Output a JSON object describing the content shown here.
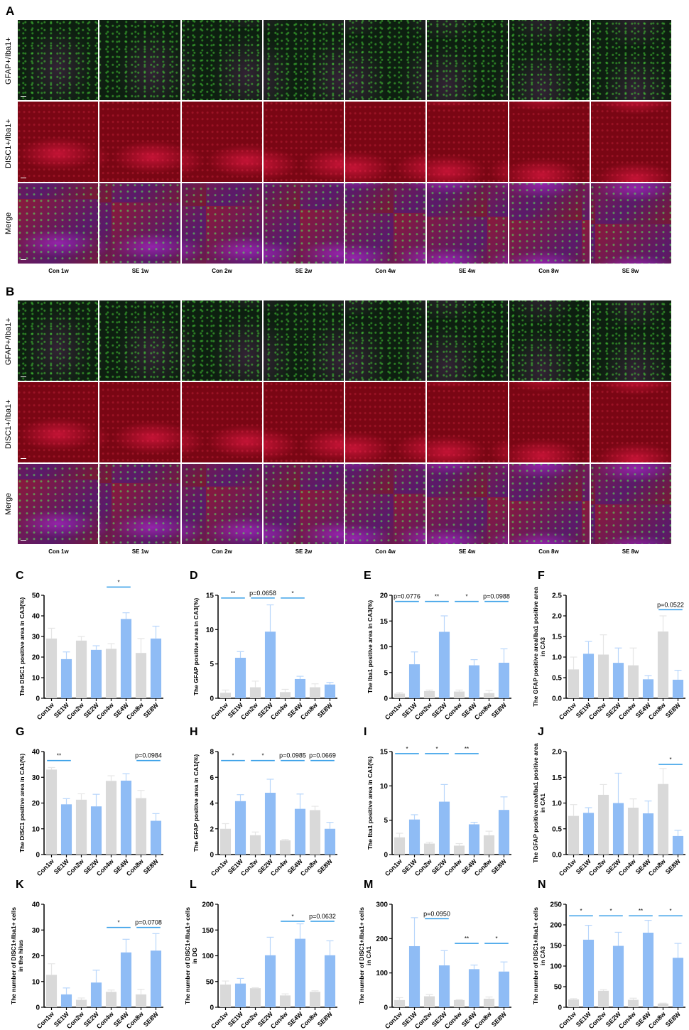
{
  "figure": {
    "sections": [
      {
        "letter": "A",
        "rows": [
          "GFAP+/Iba1+",
          "DISC1+/Iba1+",
          "Merge"
        ],
        "columns": [
          "Con 1w",
          "SE 1w",
          "Con 2w",
          "SE 2w",
          "Con 4w",
          "SE 4w",
          "Con 8w",
          "SE 8w"
        ]
      },
      {
        "letter": "B",
        "rows": [
          "GFAP+/Iba1+",
          "DISC1+/Iba1+",
          "Merge"
        ],
        "columns": [
          "Con 1w",
          "SE 1w",
          "Con 2w",
          "SE 2w",
          "Con 4w",
          "SE 4w",
          "Con 8w",
          "SE 8w"
        ]
      }
    ]
  },
  "colors": {
    "control": "#d9d9d9",
    "se": "#8fbcf5",
    "sig_line": "#3aa0e8",
    "control_err": "#e6e6e6",
    "se_err": "#b8d6fb"
  },
  "chart_data": [
    {
      "letter": "C",
      "type": "bar",
      "ylabel": "The DISC1 positive area in CA3(%)",
      "ylim": [
        0,
        50
      ],
      "yticks": [
        0,
        10,
        20,
        30,
        40,
        50
      ],
      "categories": [
        "Con1w",
        "SE1W",
        "Con2w",
        "SE2W",
        "Con4w",
        "SE4W",
        "Con8w",
        "SE8W"
      ],
      "values": [
        29,
        19,
        28,
        23.5,
        24,
        38.5,
        22,
        29
      ],
      "errors": [
        5,
        3.5,
        2,
        2,
        2.5,
        3,
        7,
        6
      ],
      "significance": [
        {
          "from": 4,
          "to": 5,
          "label": "*",
          "y": 54
        }
      ]
    },
    {
      "letter": "D",
      "type": "bar",
      "ylabel": "The GFAP positive area in CA3(%)",
      "ylim": [
        0,
        15
      ],
      "yticks": [
        0,
        5,
        10,
        15
      ],
      "categories": [
        "Con1w",
        "SE1W",
        "Con2w",
        "SE2W",
        "Con4w",
        "SE4W",
        "Con8w",
        "SE8W"
      ],
      "values": [
        0.8,
        5.9,
        1.6,
        9.7,
        0.9,
        2.8,
        1.6,
        2.0
      ],
      "errors": [
        0.4,
        0.9,
        0.9,
        3.9,
        0.4,
        0.4,
        0.5,
        0.3
      ],
      "significance": [
        {
          "from": 0,
          "to": 1,
          "label": "**",
          "y": 14.6
        },
        {
          "from": 2,
          "to": 3,
          "label": "p=0.0658",
          "y": 14.6
        },
        {
          "from": 4,
          "to": 5,
          "label": "*",
          "y": 14.6
        }
      ]
    },
    {
      "letter": "E",
      "type": "bar",
      "ylabel": "The Iba1 positive area in CA3(%)",
      "ylim": [
        0,
        20
      ],
      "yticks": [
        0,
        5,
        10,
        15,
        20
      ],
      "categories": [
        "Con1w",
        "SE1W",
        "Con2w",
        "SE2W",
        "Con4w",
        "SE4W",
        "Con8w",
        "SE8W"
      ],
      "values": [
        0.9,
        6.6,
        1.4,
        12.9,
        1.3,
        6.4,
        1.0,
        6.9
      ],
      "errors": [
        0.2,
        2.4,
        0.2,
        3.1,
        0.3,
        1.1,
        0.5,
        2.7
      ],
      "significance": [
        {
          "from": 0,
          "to": 1,
          "label": "p=0.0776",
          "y": 18.8
        },
        {
          "from": 2,
          "to": 3,
          "label": "**",
          "y": 18.8
        },
        {
          "from": 4,
          "to": 5,
          "label": "*",
          "y": 18.8
        },
        {
          "from": 6,
          "to": 7,
          "label": "p=0.0988",
          "y": 18.8
        }
      ]
    },
    {
      "letter": "F",
      "type": "bar",
      "ylabel": "The GFAP positive area/Iba1 positive area in CA3",
      "ylim": [
        0,
        2.5
      ],
      "yticks": [
        "0.0",
        "0.5",
        "1.0",
        "1.5",
        "2.0",
        "2.5"
      ],
      "categories": [
        "Con1w",
        "SE1W",
        "Con2w",
        "SE2W",
        "Con4w",
        "SE4W",
        "Con8w",
        "SE8W"
      ],
      "values": [
        0.7,
        1.08,
        1.06,
        0.86,
        0.8,
        0.46,
        1.62,
        0.45
      ],
      "errors": [
        0.3,
        0.3,
        0.48,
        0.36,
        0.42,
        0.09,
        0.38,
        0.23
      ],
      "significance": [
        {
          "from": 6,
          "to": 7,
          "label": "p=0.0522",
          "y": 2.15
        }
      ]
    },
    {
      "letter": "G",
      "type": "bar",
      "ylabel": "The DISC1 positive area in CA1(%)",
      "ylim": [
        0,
        40
      ],
      "yticks": [
        0,
        10,
        20,
        30,
        40
      ],
      "categories": [
        "Con1w",
        "SE1W",
        "Con2w",
        "SE2W",
        "Con4w",
        "SE4W",
        "Con8w",
        "SE8W"
      ],
      "values": [
        33,
        19.5,
        21.3,
        18.7,
        28.6,
        28.7,
        21.9,
        13.1
      ],
      "errors": [
        0.8,
        2.2,
        2.3,
        4.7,
        2,
        2.7,
        3,
        2.8
      ],
      "significance": [
        {
          "from": 0,
          "to": 1,
          "label": "**",
          "y": 36.5
        },
        {
          "from": 6,
          "to": 7,
          "label": "p=0.0984",
          "y": 36.5
        }
      ]
    },
    {
      "letter": "H",
      "type": "bar",
      "ylabel": "The GFAP positive area in CA1(%)",
      "ylim": [
        0,
        8
      ],
      "yticks": [
        0,
        2,
        4,
        6,
        8
      ],
      "categories": [
        "Con1w",
        "SE1W",
        "Con2w",
        "SE2W",
        "Con4w",
        "SE4W",
        "Con8w",
        "SE8W"
      ],
      "values": [
        2.0,
        4.15,
        1.5,
        4.8,
        1.1,
        3.55,
        3.45,
        2.0
      ],
      "errors": [
        0.4,
        0.5,
        0.25,
        1.05,
        0.08,
        1.15,
        0.3,
        0.5
      ],
      "significance": [
        {
          "from": 0,
          "to": 1,
          "label": "*",
          "y": 7.3
        },
        {
          "from": 2,
          "to": 3,
          "label": "*",
          "y": 7.3
        },
        {
          "from": 4,
          "to": 5,
          "label": "p=0.0985",
          "y": 7.3
        },
        {
          "from": 6,
          "to": 7,
          "label": "p=0.0669",
          "y": 7.3
        }
      ]
    },
    {
      "letter": "I",
      "type": "bar",
      "ylabel": "The Iba1 positive area in CA1(%)",
      "ylim": [
        0,
        15
      ],
      "yticks": [
        0,
        5,
        10,
        15
      ],
      "categories": [
        "Con1w",
        "SE1W",
        "Con2w",
        "SE2W",
        "Con4w",
        "SE4W",
        "Con8w",
        "SE8W"
      ],
      "values": [
        2.5,
        5.1,
        1.6,
        7.7,
        1.3,
        4.4,
        2.8,
        6.5
      ],
      "errors": [
        0.6,
        0.7,
        0.2,
        2.5,
        0.3,
        0.3,
        0.6,
        1.9
      ],
      "significance": [
        {
          "from": 0,
          "to": 1,
          "label": "*",
          "y": 14.7
        },
        {
          "from": 2,
          "to": 3,
          "label": "*",
          "y": 14.7
        },
        {
          "from": 4,
          "to": 5,
          "label": "**",
          "y": 14.7
        }
      ]
    },
    {
      "letter": "J",
      "type": "bar",
      "ylabel": "The GFAP positive area/Iba1 positive area in CA1",
      "ylim": [
        0,
        2
      ],
      "yticks": [
        "0.0",
        "0.5",
        "1.0",
        "1.5",
        "2.0"
      ],
      "categories": [
        "Con1w",
        "SE1W",
        "Con2w",
        "SE2W",
        "Con4w",
        "SE4W",
        "Con8w",
        "SE8W"
      ],
      "values": [
        0.75,
        0.81,
        1.16,
        1.0,
        0.91,
        0.8,
        1.37,
        0.36
      ],
      "errors": [
        0.22,
        0.1,
        0.2,
        0.58,
        0.17,
        0.24,
        0.3,
        0.11
      ],
      "significance": [
        {
          "from": 6,
          "to": 7,
          "label": "*",
          "y": 1.75
        }
      ]
    },
    {
      "letter": "K",
      "type": "bar",
      "ylabel": "The number of DISC1+/Iba1+ cells in the hilus",
      "ylim": [
        0,
        40
      ],
      "yticks": [
        0,
        10,
        20,
        30,
        40
      ],
      "categories": [
        "Con1w",
        "SE1W",
        "Con2w",
        "SE2W",
        "Con4w",
        "SE4W",
        "Con8w",
        "SE8W"
      ],
      "values": [
        12.6,
        5,
        2.9,
        9.6,
        6,
        21.3,
        5,
        22
      ],
      "errors": [
        4.3,
        2.5,
        0.7,
        4.8,
        0.7,
        5.1,
        2,
        6.6
      ],
      "significance": [
        {
          "from": 4,
          "to": 5,
          "label": "*",
          "y": 31
        },
        {
          "from": 6,
          "to": 7,
          "label": "p=0.0708",
          "y": 31
        }
      ]
    },
    {
      "letter": "L",
      "type": "bar",
      "ylabel": "The number of DISC1+/Iba1+ cells in DG",
      "ylim": [
        0,
        200
      ],
      "yticks": [
        0,
        50,
        100,
        150,
        200
      ],
      "categories": [
        "Con1w",
        "SE1W",
        "Con2w",
        "SE2W",
        "Con4w",
        "SE4W",
        "Con8w",
        "SE8W"
      ],
      "values": [
        44,
        46,
        37,
        101,
        23,
        133,
        30,
        101
      ],
      "errors": [
        7,
        10,
        1,
        35,
        3,
        29,
        2,
        28
      ],
      "significance": [
        {
          "from": 4,
          "to": 5,
          "label": "*",
          "y": 167
        },
        {
          "from": 6,
          "to": 7,
          "label": "p=0.0632",
          "y": 167
        }
      ]
    },
    {
      "letter": "M",
      "type": "bar",
      "ylabel": "The number of DISC1+/Iba1+ cells in CA1",
      "ylim": [
        0,
        300
      ],
      "yticks": [
        0,
        100,
        200,
        300
      ],
      "categories": [
        "Con1w",
        "SE1W",
        "Con2w",
        "SE2W",
        "Con4w",
        "SE4W",
        "Con8w",
        "SE8W"
      ],
      "values": [
        21,
        178,
        32,
        122,
        21,
        111,
        25,
        104
      ],
      "errors": [
        7,
        83,
        5,
        43,
        1,
        12,
        5,
        28
      ],
      "significance": [
        {
          "from": 2,
          "to": 3,
          "label": "p=0.0950",
          "y": 258
        },
        {
          "from": 4,
          "to": 5,
          "label": "**",
          "y": 186
        },
        {
          "from": 6,
          "to": 7,
          "label": "*",
          "y": 186
        }
      ]
    },
    {
      "letter": "N",
      "type": "bar",
      "ylabel": "The number of DISC1+/Iba1+ cells in CA3",
      "ylim": [
        0,
        250
      ],
      "yticks": [
        0,
        50,
        100,
        150,
        200,
        250
      ],
      "categories": [
        "Con1w",
        "SE1W",
        "Con2w",
        "SE2W",
        "Con4w",
        "SE4W",
        "Con8w",
        "SE8W"
      ],
      "values": [
        19,
        164,
        40,
        149,
        18,
        181,
        9,
        120
      ],
      "errors": [
        2,
        35,
        3,
        33,
        4,
        30,
        1,
        35
      ],
      "significance": [
        {
          "from": 0,
          "to": 1,
          "label": "*",
          "y": 222
        },
        {
          "from": 2,
          "to": 3,
          "label": "*",
          "y": 222
        },
        {
          "from": 4,
          "to": 5,
          "label": "**",
          "y": 222
        },
        {
          "from": 6,
          "to": 7,
          "label": "*",
          "y": 222
        }
      ]
    }
  ]
}
